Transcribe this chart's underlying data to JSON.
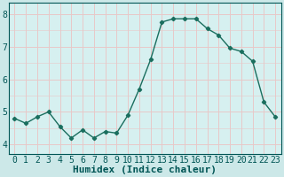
{
  "x": [
    0,
    1,
    2,
    3,
    4,
    5,
    6,
    7,
    8,
    9,
    10,
    11,
    12,
    13,
    14,
    15,
    16,
    17,
    18,
    19,
    20,
    21,
    22,
    23
  ],
  "y": [
    4.8,
    4.65,
    4.85,
    5.0,
    4.55,
    4.2,
    4.45,
    4.2,
    4.4,
    4.35,
    4.9,
    5.7,
    6.6,
    7.75,
    7.85,
    7.85,
    7.85,
    7.55,
    7.35,
    6.95,
    6.85,
    6.55,
    5.3,
    4.85
  ],
  "line_color": "#1a6e5e",
  "marker": "D",
  "marker_size": 2.2,
  "line_width": 1.0,
  "bg_color": "#cce8e8",
  "plot_bg_color": "#d6f0f0",
  "grid_color": "#e8c8c8",
  "xlabel": "Humidex (Indice chaleur)",
  "xlabel_fontsize": 8,
  "xlabel_fontweight": "bold",
  "xlabel_color": "#005555",
  "xtick_labels": [
    "0",
    "1",
    "2",
    "3",
    "4",
    "5",
    "6",
    "7",
    "8",
    "9",
    "10",
    "11",
    "12",
    "13",
    "14",
    "15",
    "16",
    "17",
    "18",
    "19",
    "20",
    "21",
    "22",
    "23"
  ],
  "ytick_values": [
    4,
    5,
    6,
    7,
    8
  ],
  "ylim": [
    3.7,
    8.35
  ],
  "xlim": [
    -0.5,
    23.5
  ],
  "tick_fontsize": 7,
  "tick_color": "#005555",
  "spine_color": "#005555"
}
